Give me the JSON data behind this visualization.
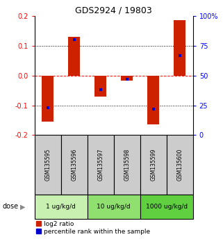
{
  "title": "GDS2924 / 19803",
  "samples": [
    "GSM135595",
    "GSM135596",
    "GSM135597",
    "GSM135598",
    "GSM135599",
    "GSM135600"
  ],
  "log2_ratios": [
    -0.155,
    0.13,
    -0.07,
    -0.018,
    -0.165,
    0.185
  ],
  "percentile_ranks": [
    23,
    80,
    38,
    47,
    22,
    67
  ],
  "groups": [
    {
      "label": "1 ug/kg/d",
      "samples": [
        0,
        1
      ],
      "color": "#c8f0b0"
    },
    {
      "label": "10 ug/kg/d",
      "samples": [
        2,
        3
      ],
      "color": "#90e070"
    },
    {
      "label": "1000 ug/kg/d",
      "samples": [
        4,
        5
      ],
      "color": "#60d040"
    }
  ],
  "ylim": [
    -0.2,
    0.2
  ],
  "yticks_left": [
    -0.2,
    -0.1,
    0.0,
    0.1,
    0.2
  ],
  "yticks_right": [
    0,
    25,
    50,
    75,
    100
  ],
  "bar_color": "#cc2200",
  "dot_color": "#0000cc",
  "bar_width": 0.45,
  "dot_size": 12,
  "legend_red": "log2 ratio",
  "legend_blue": "percentile rank within the sample",
  "dose_label": "dose",
  "background_color": "#ffffff",
  "sample_label_color": "#cccccc"
}
